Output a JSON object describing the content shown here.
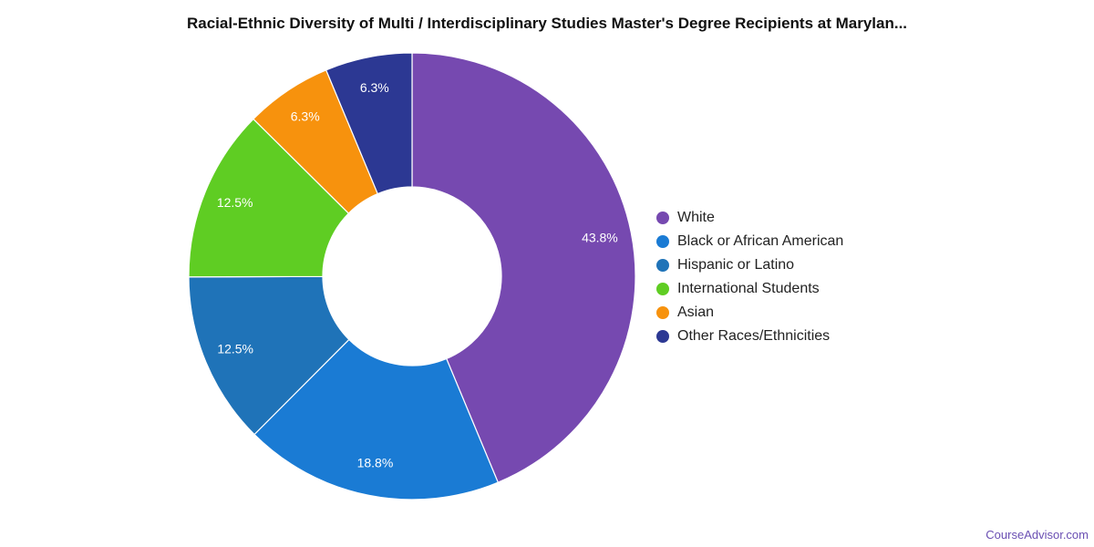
{
  "header": {
    "title": "Racial-Ethnic Diversity of Multi / Interdisciplinary Studies Master's Degree Recipients at Marylan..."
  },
  "footer": {
    "brand": "CourseAdvisor.com"
  },
  "chart_data": {
    "type": "pie",
    "title": "Racial-Ethnic Diversity of Multi / Interdisciplinary Studies Master's Degree Recipients at Marylan...",
    "legend_position": "right",
    "categories": [
      "White",
      "Black or African American",
      "Hispanic or Latino",
      "International Students",
      "Asian",
      "Other Races/Ethnicities"
    ],
    "values": [
      43.8,
      18.8,
      12.5,
      12.5,
      6.3,
      6.3
    ],
    "labels": [
      "43.8%",
      "18.8%",
      "12.5%",
      "12.5%",
      "6.3%",
      "6.3%"
    ],
    "colors": [
      "#7649b0",
      "#1a7bd4",
      "#1f73b8",
      "#5fcd23",
      "#f7920d",
      "#2c3893"
    ]
  }
}
